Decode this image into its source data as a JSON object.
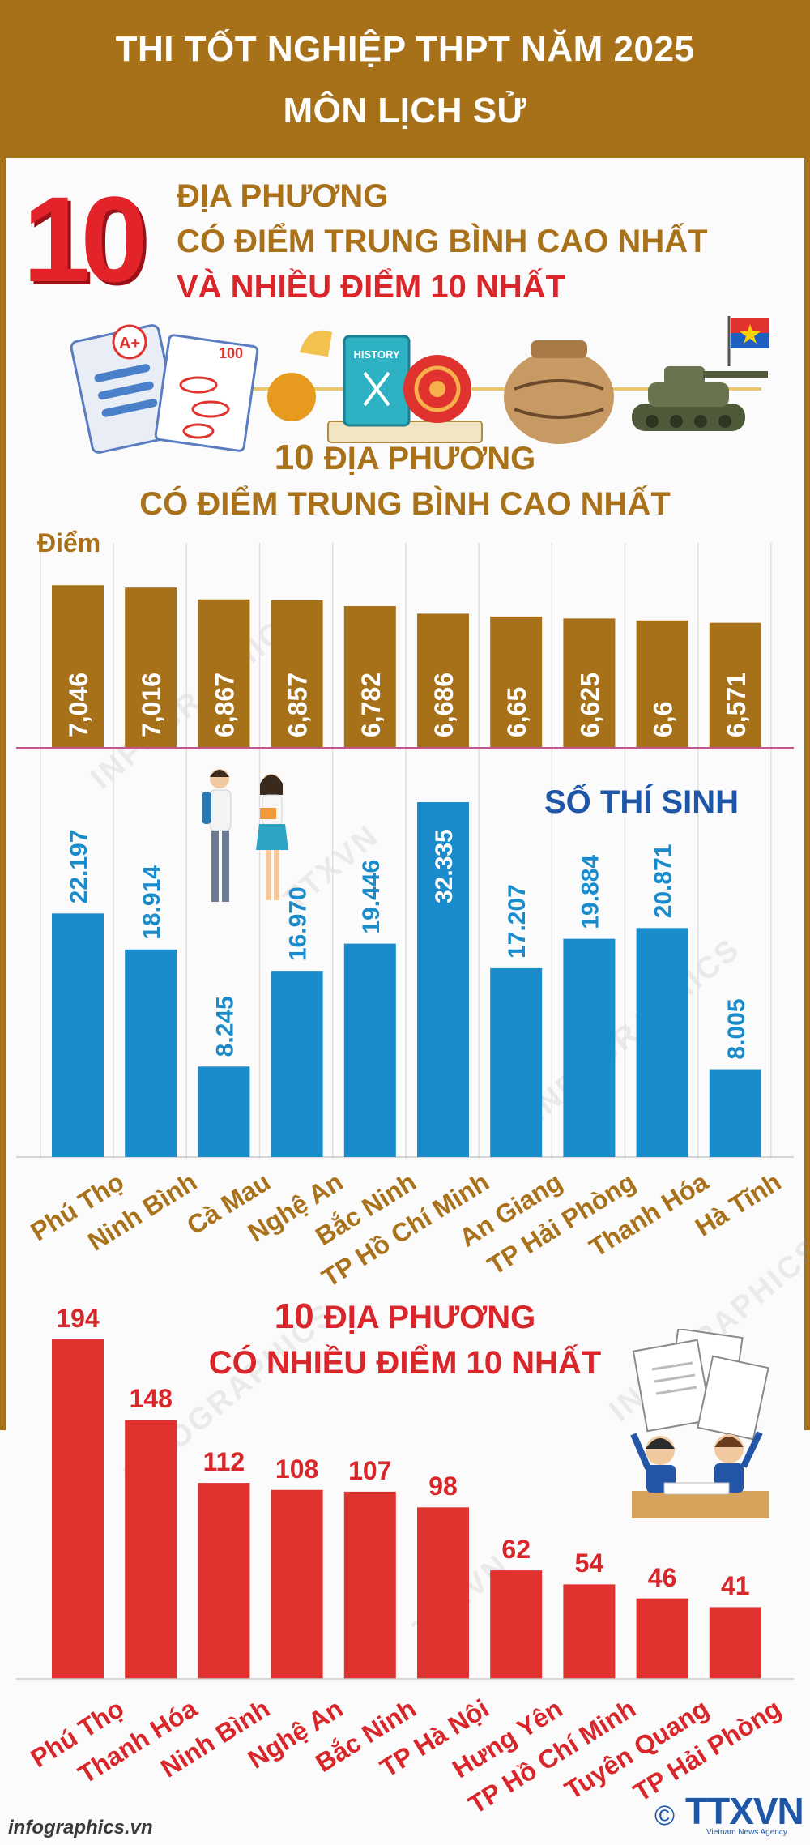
{
  "header": {
    "line1": "THI TỐT NGHIỆP THPT NĂM 2025",
    "line2": "MÔN LỊCH SỬ"
  },
  "intro": {
    "number": "10",
    "line1": "ĐỊA PHƯƠNG",
    "line2": "CÓ ĐIỂM TRUNG BÌNH CAO NHẤT",
    "line3": "VÀ NHIỀU ĐIỂM 10 NHẤT"
  },
  "illustration": {
    "paper_grade": "A+",
    "paper_score": "100",
    "book_label": "HISTORY"
  },
  "section1": {
    "title_number": "10",
    "title_line1_rest": "ĐỊA PHƯƠNG",
    "title_line2": "CÓ ĐIỂM TRUNG BÌNH CAO NHẤT",
    "unit_label": "Điểm",
    "students_label": "SỐ THÍ SINH"
  },
  "section2": {
    "title_number": "10",
    "title_line1_rest": "ĐỊA PHƯƠNG",
    "title_line2": "CÓ NHIỀU ĐIỂM 10 NHẤT"
  },
  "footer": {
    "source": "infographics.vn",
    "copyright": "©",
    "logo": "TTXVN",
    "logo_sub": "Vietnam News Agency"
  },
  "watermark": {
    "text1": "INFOGRAPHICS",
    "text2": "TTXVN"
  },
  "colors": {
    "gold": "#a67118",
    "blue": "#1a8ccb",
    "red": "#e0332f",
    "navy": "#1f57a8",
    "red_text": "#d8262a",
    "pink_line": "#c0588e"
  },
  "chart_data": [
    {
      "type": "bar",
      "categories": [
        "Phú Thọ",
        "Ninh Bình",
        "Cà Mau",
        "Nghệ An",
        "Bắc Ninh",
        "TP Hồ Chí Minh",
        "An Giang",
        "TP Hải Phòng",
        "Thanh Hóa",
        "Hà Tĩnh"
      ],
      "series": [
        {
          "values": [
            7.046,
            7.016,
            6.867,
            6.857,
            6.782,
            6.686,
            6.65,
            6.625,
            6.6,
            6.571
          ]
        }
      ],
      "value_labels": [
        "7,046",
        "7,016",
        "6,867",
        "6,857",
        "6,782",
        "6,686",
        "6,65",
        "6,625",
        "6,6",
        "6,571"
      ],
      "title": "10 ĐỊA PHƯƠNG CÓ ĐIỂM TRUNG BÌNH CAO NHẤT",
      "ylabel": "Điểm"
    },
    {
      "type": "bar",
      "categories": [
        "Phú Thọ",
        "Ninh Bình",
        "Cà Mau",
        "Nghệ An",
        "Bắc Ninh",
        "TP Hồ Chí Minh",
        "An Giang",
        "TP Hải Phòng",
        "Thanh Hóa",
        "Hà Tĩnh"
      ],
      "series": [
        {
          "name": "SỐ THÍ SINH",
          "values": [
            22197,
            18914,
            8245,
            16970,
            19446,
            32335,
            17207,
            19884,
            20871,
            8005
          ]
        }
      ],
      "value_labels": [
        "22.197",
        "18.914",
        "8.245",
        "16.970",
        "19.446",
        "32.335",
        "17.207",
        "19.884",
        "20.871",
        "8.005"
      ]
    },
    {
      "type": "bar",
      "categories": [
        "Phú Thọ",
        "Thanh Hóa",
        "Ninh Bình",
        "Nghệ An",
        "Bắc Ninh",
        "TP Hà Nội",
        "Hưng Yên",
        "TP Hồ Chí Minh",
        "Tuyên Quang",
        "TP Hải Phòng"
      ],
      "series": [
        {
          "values": [
            194,
            148,
            112,
            108,
            107,
            98,
            62,
            54,
            46,
            41
          ]
        }
      ],
      "value_labels": [
        "194",
        "148",
        "112",
        "108",
        "107",
        "98",
        "62",
        "54",
        "46",
        "41"
      ],
      "title": "10 ĐỊA PHƯƠNG CÓ NHIỀU ĐIỂM 10 NHẤT"
    }
  ]
}
